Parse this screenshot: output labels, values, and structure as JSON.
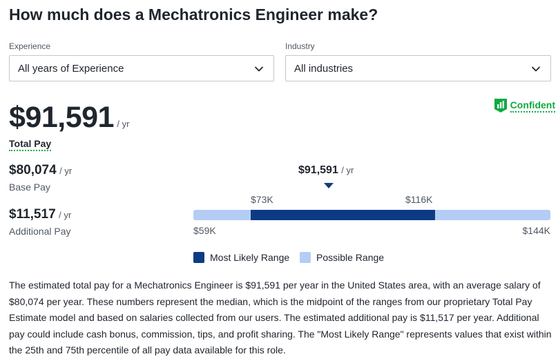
{
  "page_title": "How much does a Mechatronics Engineer make?",
  "filters": {
    "experience": {
      "label": "Experience",
      "value": "All years of Experience"
    },
    "industry": {
      "label": "Industry",
      "value": "All industries"
    }
  },
  "confidence": {
    "label": "Confident",
    "icon": "confidence-bars-icon"
  },
  "total_pay": {
    "amount": "$91,591",
    "unit": "/ yr",
    "label": "Total Pay"
  },
  "base_pay": {
    "amount": "$80,074",
    "unit": "/ yr",
    "label": "Base Pay"
  },
  "additional_pay": {
    "amount": "$11,517",
    "unit": "/ yr",
    "label": "Additional Pay"
  },
  "range": {
    "median": {
      "amount": "$91,591",
      "unit": "/ yr"
    },
    "likely_low": "$73K",
    "likely_high": "$116K",
    "possible_low": "$59K",
    "possible_high": "$144K"
  },
  "legend": {
    "most_likely": {
      "label": "Most Likely Range",
      "color": "#0d3b83"
    },
    "possible": {
      "label": "Possible Range",
      "color": "#b4cdf5"
    }
  },
  "description": "The estimated total pay for a Mechatronics Engineer is $91,591 per year in the United States area, with an average salary of $80,074 per year. These numbers represent the median, which is the midpoint of the ranges from our proprietary Total Pay Estimate model and based on salaries collected from our users. The estimated additional pay is $11,517 per year. Additional pay could include cash bonus, commission, tips, and profit sharing. The \"Most Likely Range\" represents values that exist within the 25th and 75th percentile of all pay data available for this role."
}
